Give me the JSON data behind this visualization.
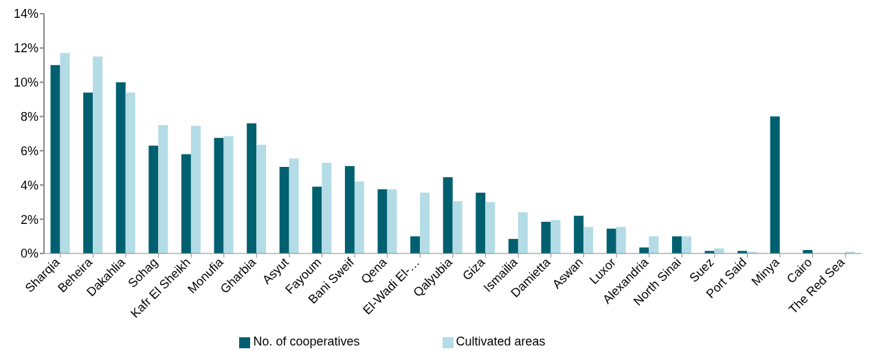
{
  "chart_data": {
    "type": "bar",
    "categories": [
      "Sharqia",
      "Beheira",
      "Dakahlia",
      "Sohag",
      "Kafr El Sheikh",
      "Monufia",
      "Gharbia",
      "Asyut",
      "Fayoum",
      "Bani Sweif",
      "Qena",
      "El-Wadi El-…",
      "Qalyubia",
      "Giza",
      "Ismailia",
      "Damietta",
      "Aswan",
      "Luxor",
      "Alexandria",
      "North Sinai",
      "Suez",
      "Port Said",
      "Minya",
      "Cairo",
      "The Red Sea"
    ],
    "series": [
      {
        "name": "No. of cooperatives",
        "color": "#006070",
        "values": [
          11.0,
          9.4,
          10.0,
          6.3,
          5.8,
          6.75,
          7.6,
          5.05,
          3.9,
          5.1,
          3.75,
          1.0,
          4.45,
          3.55,
          0.85,
          1.85,
          2.2,
          1.45,
          0.35,
          1.0,
          0.15,
          0.15,
          8.0,
          0.2,
          0
        ]
      },
      {
        "name": "Cultivated areas",
        "color": "#b3dce6",
        "values": [
          11.7,
          11.5,
          9.4,
          7.5,
          7.45,
          6.85,
          6.35,
          5.55,
          5.3,
          4.2,
          3.75,
          3.55,
          3.05,
          3.0,
          2.4,
          1.95,
          1.55,
          1.55,
          1.0,
          1.0,
          0.3,
          0.1,
          0,
          0,
          0.1
        ]
      }
    ],
    "ylim": [
      0,
      14
    ],
    "yticks": [
      {
        "value": 0,
        "label": "0%"
      },
      {
        "value": 2,
        "label": "2%"
      },
      {
        "value": 4,
        "label": "4%"
      },
      {
        "value": 6,
        "label": "6%"
      },
      {
        "value": 8,
        "label": "8%"
      },
      {
        "value": 10,
        "label": "10%"
      },
      {
        "value": 12,
        "label": "12%"
      },
      {
        "value": 14,
        "label": "14%"
      }
    ],
    "grid": false,
    "legend": "bottom"
  }
}
